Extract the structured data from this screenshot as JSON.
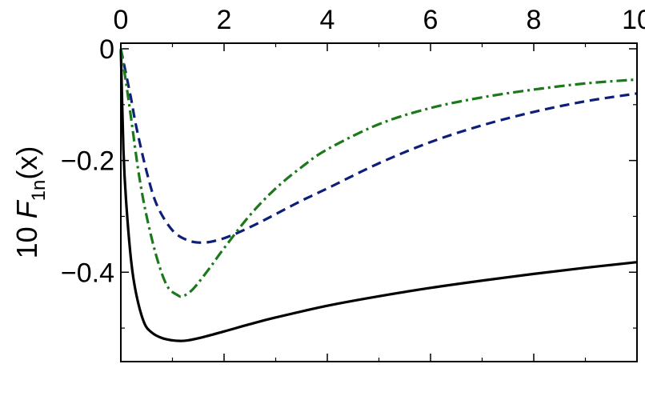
{
  "chart_data": {
    "type": "line",
    "title": "",
    "xlabel": "",
    "ylabel": {
      "prefix": "10 ",
      "symbol": "F",
      "subscript": "1n",
      "suffix": "(x)"
    },
    "xlim": [
      0,
      10
    ],
    "ylim": [
      -0.56,
      0.01
    ],
    "x_ticks_major": [
      0,
      2,
      4,
      6,
      8,
      10
    ],
    "x_tick_labels": [
      "0",
      "2",
      "4",
      "6",
      "8",
      "10"
    ],
    "x_ticks_minor": [
      1,
      3,
      5,
      7,
      9
    ],
    "y_ticks_major": [
      0,
      -0.2,
      -0.4
    ],
    "y_tick_labels": [
      "0",
      "−0.2",
      "−0.4"
    ],
    "y_ticks_minor": [
      -0.1,
      -0.3,
      -0.5
    ],
    "grid": false,
    "legend": "none",
    "series": [
      {
        "style": "solid",
        "color": "#000000",
        "x": [
          0,
          0.05,
          0.1,
          0.2,
          0.3,
          0.45,
          0.6,
          0.8,
          1.0,
          1.15,
          1.3,
          1.6,
          2.0,
          2.5,
          3.0,
          4.0,
          5.0,
          6.0,
          7.0,
          8.0,
          9.0,
          10.0
        ],
        "y": [
          0,
          -0.18,
          -0.27,
          -0.38,
          -0.44,
          -0.49,
          -0.508,
          -0.518,
          -0.522,
          -0.523,
          -0.522,
          -0.516,
          -0.506,
          -0.493,
          -0.481,
          -0.46,
          -0.443,
          -0.428,
          -0.415,
          -0.403,
          -0.392,
          -0.382
        ]
      },
      {
        "style": "dashed",
        "color": "#0d1f78",
        "x": [
          0,
          0.1,
          0.2,
          0.3,
          0.5,
          0.7,
          1.0,
          1.3,
          1.6,
          1.9,
          2.2,
          2.6,
          3.0,
          3.5,
          4.0,
          5.0,
          6.0,
          7.0,
          8.0,
          9.0,
          10.0
        ],
        "y": [
          0,
          -0.045,
          -0.09,
          -0.14,
          -0.22,
          -0.28,
          -0.325,
          -0.343,
          -0.347,
          -0.342,
          -0.332,
          -0.315,
          -0.296,
          -0.272,
          -0.25,
          -0.205,
          -0.167,
          -0.137,
          -0.113,
          -0.094,
          -0.08
        ]
      },
      {
        "style": "dashdot",
        "color": "#1a7a1a",
        "x": [
          0,
          0.1,
          0.2,
          0.35,
          0.5,
          0.7,
          0.9,
          1.1,
          1.2,
          1.4,
          1.7,
          2.0,
          2.5,
          3.0,
          3.5,
          4.0,
          5.0,
          6.0,
          7.0,
          8.0,
          9.0,
          10.0
        ],
        "y": [
          0,
          -0.06,
          -0.125,
          -0.225,
          -0.3,
          -0.375,
          -0.425,
          -0.441,
          -0.443,
          -0.43,
          -0.395,
          -0.357,
          -0.298,
          -0.25,
          -0.212,
          -0.18,
          -0.135,
          -0.106,
          -0.087,
          -0.073,
          -0.062,
          -0.055
        ]
      }
    ]
  }
}
